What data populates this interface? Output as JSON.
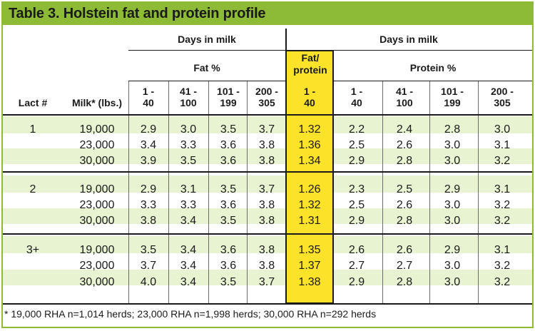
{
  "title": "Table 3. Holstein fat and protein profile",
  "headers": {
    "days_in_milk_left": "Days in milk",
    "days_in_milk_right": "Days in milk",
    "fat_pct": "Fat %",
    "fat_protein_line1": "Fat/",
    "fat_protein_line2": "protein",
    "protein_pct": "Protein %",
    "lact": "Lact #",
    "milk": "Milk* (lbs.)",
    "ranges": [
      {
        "a": "1 -",
        "b": "40"
      },
      {
        "a": "41 -",
        "b": "100"
      },
      {
        "a": "101 -",
        "b": "199"
      },
      {
        "a": "200 -",
        "b": "305"
      },
      {
        "a": "1 -",
        "b": "40"
      },
      {
        "a": "1 -",
        "b": "40"
      },
      {
        "a": "41 -",
        "b": "100"
      },
      {
        "a": "101 -",
        "b": "199"
      },
      {
        "a": "200 -",
        "b": "305"
      }
    ]
  },
  "rows": [
    {
      "lact": "1",
      "milk": "19,000",
      "vals": [
        "2.9",
        "3.0",
        "3.5",
        "3.7",
        "1.32",
        "2.2",
        "2.4",
        "2.8",
        "3.0"
      ]
    },
    {
      "lact": "",
      "milk": "23,000",
      "vals": [
        "3.4",
        "3.3",
        "3.6",
        "3.8",
        "1.36",
        "2.5",
        "2.6",
        "3.0",
        "3.1"
      ]
    },
    {
      "lact": "",
      "milk": "30,000",
      "vals": [
        "3.9",
        "3.5",
        "3.6",
        "3.8",
        "1.34",
        "2.9",
        "2.8",
        "3.0",
        "3.2"
      ]
    },
    {
      "lact": "2",
      "milk": "19,000",
      "vals": [
        "2.9",
        "3.1",
        "3.5",
        "3.7",
        "1.26",
        "2.3",
        "2.5",
        "2.9",
        "3.1"
      ]
    },
    {
      "lact": "",
      "milk": "23,000",
      "vals": [
        "3.3",
        "3.3",
        "3.6",
        "3.8",
        "1.32",
        "2.5",
        "2.6",
        "3.0",
        "3.2"
      ]
    },
    {
      "lact": "",
      "milk": "30,000",
      "vals": [
        "3.8",
        "3.4",
        "3.5",
        "3.8",
        "1.31",
        "2.9",
        "2.8",
        "3.0",
        "3.2"
      ]
    },
    {
      "lact": "3+",
      "milk": "19,000",
      "vals": [
        "3.5",
        "3.4",
        "3.6",
        "3.8",
        "1.35",
        "2.6",
        "2.6",
        "2.9",
        "3.1"
      ]
    },
    {
      "lact": "",
      "milk": "23,000",
      "vals": [
        "3.7",
        "3.4",
        "3.6",
        "3.8",
        "1.37",
        "2.7",
        "2.7",
        "3.0",
        "3.2"
      ]
    },
    {
      "lact": "",
      "milk": "30,000",
      "vals": [
        "4.0",
        "3.4",
        "3.5",
        "3.7",
        "1.38",
        "2.9",
        "2.8",
        "3.0",
        "3.2"
      ]
    }
  ],
  "footnote": "* 19,000 RHA n=1,014 herds; 23,000 RHA n=1,998 herds; 30,000 RHA n=292 herds",
  "colors": {
    "accent_green": "#8dbb36",
    "band_green": "#e8f3d2",
    "highlight_yellow": "#fde22a"
  }
}
